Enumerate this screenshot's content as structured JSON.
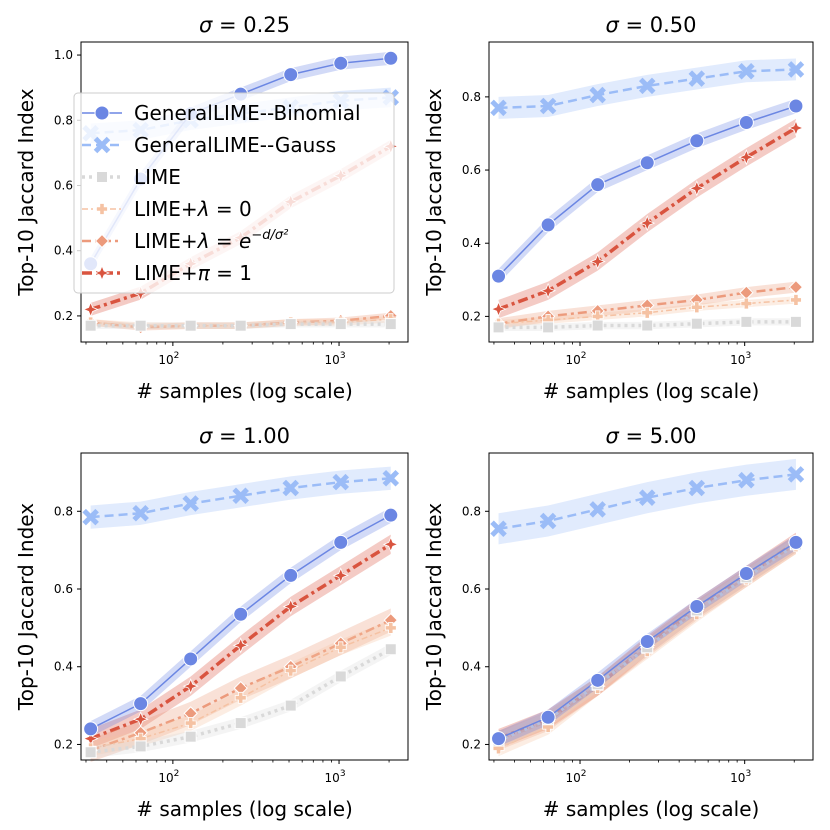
{
  "chart_data": [
    {
      "type": "line",
      "title_symbol": "σ",
      "title_value": "= 0.25",
      "xlabel": "# samples (log scale)",
      "ylabel": "Top-10 Jaccard Index",
      "xscale": "log",
      "xlim": [
        28,
        2600
      ],
      "ylim": [
        0.12,
        1.04
      ],
      "yticks": [
        0.2,
        0.4,
        0.6,
        0.8,
        1.0
      ],
      "ytick_labels": [
        "0.2",
        "0.4",
        "0.6",
        "0.8",
        "1.0"
      ],
      "xticks": [
        100,
        1000
      ],
      "xtick_bases": [
        "10",
        "10"
      ],
      "xtick_exps": [
        "2",
        "3"
      ],
      "x": [
        32,
        64,
        128,
        256,
        512,
        1024,
        2048
      ],
      "series": [
        {
          "name": "GeneralLIME--Binomial",
          "values": [
            0.36,
            0.62,
            0.82,
            0.88,
            0.94,
            0.975,
            0.99
          ],
          "band": 0.02
        },
        {
          "name": "GeneralLIME--Gauss",
          "values": [
            0.76,
            0.77,
            0.8,
            0.82,
            0.84,
            0.86,
            0.87
          ],
          "band": 0.03
        },
        {
          "name": "LIME",
          "values": [
            0.17,
            0.17,
            0.17,
            0.17,
            0.175,
            0.175,
            0.175
          ],
          "band": 0.01
        },
        {
          "name": "LIME+λ = 0",
          "values": [
            0.18,
            0.17,
            0.17,
            0.17,
            0.18,
            0.18,
            0.19
          ],
          "band": 0.01
        },
        {
          "name": "LIME+λ = e^(−d/σ²)",
          "values": [
            0.18,
            0.165,
            0.17,
            0.17,
            0.18,
            0.185,
            0.2
          ],
          "band": 0.01
        },
        {
          "name": "LIME+π = 1",
          "values": [
            0.22,
            0.27,
            0.36,
            0.44,
            0.55,
            0.63,
            0.72
          ],
          "band": 0.02
        }
      ],
      "legend": "top-left"
    },
    {
      "type": "line",
      "title_symbol": "σ",
      "title_value": "= 0.50",
      "xlabel": "# samples (log scale)",
      "ylabel": "Top-10 Jaccard Index",
      "xscale": "log",
      "xlim": [
        28,
        2600
      ],
      "ylim": [
        0.13,
        0.95
      ],
      "yticks": [
        0.2,
        0.4,
        0.6,
        0.8
      ],
      "ytick_labels": [
        "0.2",
        "0.4",
        "0.6",
        "0.8"
      ],
      "xticks": [
        100,
        1000
      ],
      "xtick_bases": [
        "10",
        "10"
      ],
      "xtick_exps": [
        "2",
        "3"
      ],
      "x": [
        32,
        64,
        128,
        256,
        512,
        1024,
        2048
      ],
      "series": [
        {
          "name": "GeneralLIME--Binomial",
          "values": [
            0.31,
            0.45,
            0.56,
            0.62,
            0.68,
            0.73,
            0.775
          ],
          "band": 0.02
        },
        {
          "name": "GeneralLIME--Gauss",
          "values": [
            0.77,
            0.775,
            0.805,
            0.83,
            0.85,
            0.87,
            0.875
          ],
          "band": 0.03
        },
        {
          "name": "LIME",
          "values": [
            0.17,
            0.17,
            0.175,
            0.175,
            0.18,
            0.185,
            0.185
          ],
          "band": 0.01
        },
        {
          "name": "LIME+λ = 0",
          "values": [
            0.18,
            0.19,
            0.2,
            0.21,
            0.225,
            0.235,
            0.245
          ],
          "band": 0.01
        },
        {
          "name": "LIME+λ = e^(−d/σ²)",
          "values": [
            0.18,
            0.2,
            0.215,
            0.23,
            0.245,
            0.265,
            0.28
          ],
          "band": 0.015
        },
        {
          "name": "LIME+π = 1",
          "values": [
            0.22,
            0.27,
            0.35,
            0.455,
            0.55,
            0.635,
            0.715
          ],
          "band": 0.025
        }
      ]
    },
    {
      "type": "line",
      "title_symbol": "σ",
      "title_value": "= 1.00",
      "xlabel": "# samples (log scale)",
      "ylabel": "Top-10 Jaccard Index",
      "xscale": "log",
      "xlim": [
        28,
        2600
      ],
      "ylim": [
        0.16,
        0.95
      ],
      "yticks": [
        0.2,
        0.4,
        0.6,
        0.8
      ],
      "ytick_labels": [
        "0.2",
        "0.4",
        "0.6",
        "0.8"
      ],
      "xticks": [
        100,
        1000
      ],
      "xtick_bases": [
        "10",
        "10"
      ],
      "xtick_exps": [
        "2",
        "3"
      ],
      "x": [
        32,
        64,
        128,
        256,
        512,
        1024,
        2048
      ],
      "series": [
        {
          "name": "GeneralLIME--Binomial",
          "values": [
            0.24,
            0.305,
            0.42,
            0.535,
            0.635,
            0.72,
            0.79
          ],
          "band": 0.02
        },
        {
          "name": "GeneralLIME--Gauss",
          "values": [
            0.785,
            0.795,
            0.82,
            0.84,
            0.86,
            0.875,
            0.885
          ],
          "band": 0.03
        },
        {
          "name": "LIME",
          "values": [
            0.18,
            0.195,
            0.22,
            0.255,
            0.3,
            0.375,
            0.445
          ],
          "band": 0.015
        },
        {
          "name": "LIME+λ = 0",
          "values": [
            0.19,
            0.215,
            0.255,
            0.32,
            0.39,
            0.45,
            0.5
          ],
          "band": 0.02
        },
        {
          "name": "LIME+λ = e^(−d/σ²)",
          "values": [
            0.185,
            0.23,
            0.28,
            0.345,
            0.4,
            0.46,
            0.52
          ],
          "band": 0.03
        },
        {
          "name": "LIME+π = 1",
          "values": [
            0.215,
            0.265,
            0.35,
            0.455,
            0.555,
            0.635,
            0.715
          ],
          "band": 0.025
        }
      ]
    },
    {
      "type": "line",
      "title_symbol": "σ",
      "title_value": "= 5.00",
      "xlabel": "# samples (log scale)",
      "ylabel": "Top-10 Jaccard Index",
      "xscale": "log",
      "xlim": [
        28,
        2600
      ],
      "ylim": [
        0.16,
        0.95
      ],
      "yticks": [
        0.2,
        0.4,
        0.6,
        0.8
      ],
      "ytick_labels": [
        "0.2",
        "0.4",
        "0.6",
        "0.8"
      ],
      "xticks": [
        100,
        1000
      ],
      "xtick_bases": [
        "10",
        "10"
      ],
      "xtick_exps": [
        "2",
        "3"
      ],
      "x": [
        32,
        64,
        128,
        256,
        512,
        1024,
        2048
      ],
      "series": [
        {
          "name": "GeneralLIME--Binomial",
          "values": [
            0.215,
            0.27,
            0.365,
            0.465,
            0.555,
            0.64,
            0.72
          ],
          "band": 0.02
        },
        {
          "name": "GeneralLIME--Gauss",
          "values": [
            0.755,
            0.775,
            0.805,
            0.835,
            0.86,
            0.88,
            0.895
          ],
          "band": 0.04
        },
        {
          "name": "LIME",
          "values": [
            0.21,
            0.265,
            0.355,
            0.45,
            0.545,
            0.63,
            0.715
          ],
          "band": 0.02
        },
        {
          "name": "LIME+λ = 0",
          "values": [
            0.19,
            0.245,
            0.345,
            0.44,
            0.535,
            0.625,
            0.71
          ],
          "band": 0.02
        },
        {
          "name": "LIME+λ = e^(−d/σ²)",
          "values": [
            0.21,
            0.26,
            0.35,
            0.45,
            0.545,
            0.63,
            0.715
          ],
          "band": 0.025
        },
        {
          "name": "LIME+π = 1",
          "values": [
            0.215,
            0.265,
            0.35,
            0.455,
            0.55,
            0.635,
            0.72
          ],
          "band": 0.025
        }
      ]
    }
  ],
  "legend_entries": [
    {
      "label": "GeneralLIME--Binomial"
    },
    {
      "label": "GeneralLIME--Gauss"
    },
    {
      "label": "LIME"
    },
    {
      "label_prefix": "LIME+",
      "label_symbol": "λ",
      "label_suffix": " = 0"
    },
    {
      "label_prefix": "LIME+",
      "label_symbol": "λ",
      "label_eq": " = ",
      "label_base": "e",
      "label_exp": "−d/σ²"
    },
    {
      "label_prefix": "LIME+",
      "label_symbol": "π",
      "label_suffix": " = 1"
    }
  ],
  "series_styles": [
    {
      "color": "#6b86e3",
      "dash": "",
      "width": 1.5,
      "marker": "circle"
    },
    {
      "color": "#9bbcf7",
      "dash": "9,5",
      "width": 2.5,
      "marker": "x"
    },
    {
      "color": "#d9d9d9",
      "dash": "3,4",
      "width": 3.5,
      "marker": "square"
    },
    {
      "color": "#f5c2a3",
      "dash": "6,3,2,3",
      "width": 1.5,
      "marker": "plus"
    },
    {
      "color": "#ec9a7c",
      "dash": "9,4,3,4",
      "width": 2.5,
      "marker": "diamond"
    },
    {
      "color": "#d9543f",
      "dash": "10,4,3,4",
      "width": 3.5,
      "marker": "star"
    }
  ]
}
